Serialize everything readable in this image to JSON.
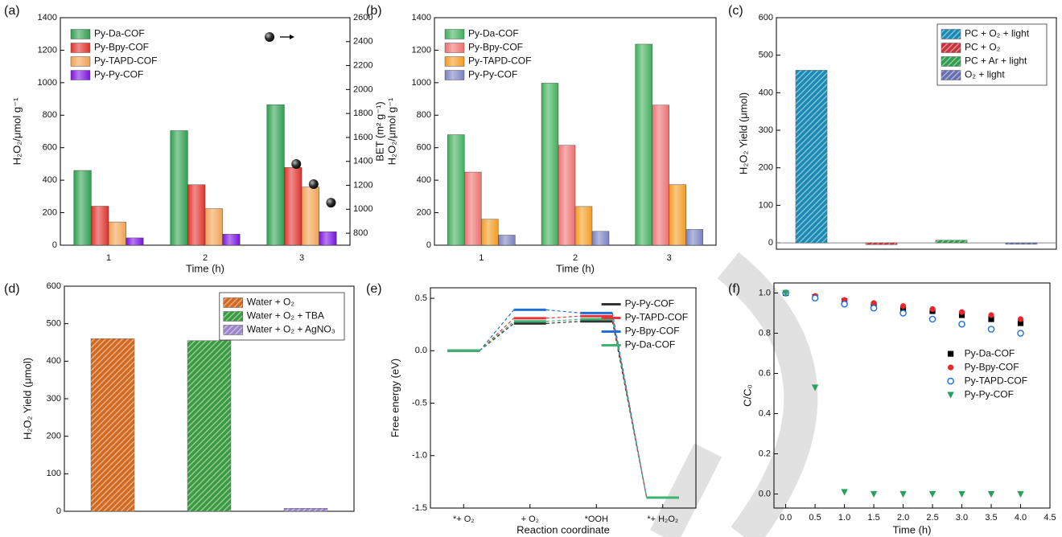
{
  "chart_data": [
    {
      "type": "bar",
      "label": "(a)",
      "x_label": "Time (h)",
      "y_label": "H₂O₂/μmol g⁻¹",
      "y2_label": "BET (m² g⁻¹)",
      "categories": [
        "1",
        "2",
        "3"
      ],
      "series": [
        {
          "name": "Py-Da-COF",
          "color": "#2e9e4f",
          "values": [
            460,
            705,
            865
          ]
        },
        {
          "name": "Py-Bpy-COF",
          "color": "#e0302a",
          "values": [
            240,
            372,
            478
          ],
          "bet": 1378
        },
        {
          "name": "Py-TAPD-COF",
          "color": "#f0a050",
          "values": [
            143,
            225,
            358
          ],
          "bet": 1210
        },
        {
          "name": "Py-Py-COF",
          "color": "#7a10e0",
          "values": [
            45,
            68,
            83
          ],
          "bet": 1055
        }
      ],
      "ylim": [
        0,
        1400
      ],
      "yticks": [
        0,
        200,
        400,
        600,
        800,
        1000,
        1200,
        1400
      ],
      "y2lim": [
        700,
        2600
      ],
      "y2ticks": [
        800,
        1000,
        1200,
        1400,
        1600,
        1800,
        2000,
        2200,
        2400,
        2600
      ],
      "legend": "upper left",
      "gradient": true
    },
    {
      "type": "bar",
      "label": "(b)",
      "x_label": "Time (h)",
      "y_label": "H₂O₂/μmol g⁻¹",
      "categories": [
        "1",
        "2",
        "3"
      ],
      "series": [
        {
          "name": "Py-Da-COF",
          "color": "#3fae5a",
          "values": [
            680,
            997,
            1237
          ]
        },
        {
          "name": "Py-Bpy-COF",
          "color": "#ee6e6e",
          "values": [
            450,
            615,
            862
          ]
        },
        {
          "name": "Py-TAPD-COF",
          "color": "#f39a1e",
          "values": [
            160,
            238,
            373
          ]
        },
        {
          "name": "Py-Py-COF",
          "color": "#7a80c0",
          "values": [
            62,
            85,
            97
          ]
        }
      ],
      "ylim": [
        0,
        1400
      ],
      "yticks": [
        0,
        200,
        400,
        600,
        800,
        1000,
        1200,
        1400
      ],
      "legend": "upper left",
      "gradient": true
    },
    {
      "type": "bar",
      "label": "(c)",
      "y_label": "H₂O₂ Yield (μmol)",
      "series": [
        {
          "name": "PC + O₂ + light",
          "color": "#1a8ab5",
          "values": [
            460
          ]
        },
        {
          "name": "PC + O₂",
          "color": "#c8323a",
          "values": [
            -5
          ]
        },
        {
          "name": "PC + Ar + light",
          "color": "#2e9e4f",
          "values": [
            7
          ]
        },
        {
          "name": "O₂ + light",
          "color": "#6670b0",
          "values": [
            -4
          ]
        }
      ],
      "ylim": [
        -17,
        600
      ],
      "yticks": [
        0,
        100,
        200,
        300,
        400,
        500,
        600
      ],
      "legend": "upper right",
      "legend_frame": true,
      "hatch": true
    },
    {
      "type": "bar",
      "label": "(d)",
      "y_label": "H₂O₂ Yield (μmol)",
      "series": [
        {
          "name": "Water + O₂",
          "color": "#d2691e",
          "values": [
            460
          ]
        },
        {
          "name": "Water + O₂ + TBA",
          "color": "#3a9a40",
          "values": [
            455
          ]
        },
        {
          "name": "Water + O₂ + AgNO₃",
          "color": "#9b86c8",
          "values": [
            8
          ]
        }
      ],
      "ylim": [
        0,
        600
      ],
      "yticks": [
        0,
        100,
        200,
        300,
        400,
        500,
        600
      ],
      "legend": "upper right",
      "legend_frame": true,
      "hatch": true
    },
    {
      "type": "line",
      "label": "(e)",
      "x_label": "Reaction coordinate",
      "y_label": "Free energy (eV)",
      "categories": [
        "*+ O₂",
        "+ O₂",
        "*OOH",
        "*+ H₂O₂"
      ],
      "series": [
        {
          "name": "Py-Py-COF",
          "color": "#333333",
          "values": [
            0,
            0.26,
            0.28,
            -1.4
          ]
        },
        {
          "name": "Py-TAPD-COF",
          "color": "#e8353a",
          "values": [
            0,
            0.31,
            0.33,
            -1.4
          ]
        },
        {
          "name": "Py-Bpy-COF",
          "color": "#1f6fd8",
          "values": [
            0,
            0.39,
            0.36,
            -1.4
          ]
        },
        {
          "name": "Py-Da-COF",
          "color": "#3cb371",
          "values": [
            0,
            0.28,
            0.3,
            -1.4
          ]
        }
      ],
      "ylim": [
        -1.5,
        0.6
      ],
      "yticks": [
        -1.5,
        {
          "value": -1,
          "label": "-1.0"
        },
        -0.5,
        {
          "value": 0,
          "label": "0.0"
        },
        0.5
      ],
      "legend": "upper right"
    },
    {
      "type": "scatter",
      "label": "(f)",
      "x_label": "Time (h)",
      "y_label": "C/C₀",
      "x": [
        0,
        0.5,
        1,
        1.5,
        2,
        2.5,
        3,
        3.5,
        4
      ],
      "series": [
        {
          "name": "Py-Da-COF",
          "color": "#000000",
          "marker": "square",
          "values": [
            1.0,
            0.98,
            0.96,
            0.94,
            0.92,
            0.91,
            0.89,
            0.87,
            0.85
          ]
        },
        {
          "name": "Py-Bpy-COF",
          "color": "#e8262b",
          "marker": "circle",
          "values": [
            1.0,
            0.985,
            0.965,
            0.95,
            0.935,
            0.92,
            0.905,
            0.89,
            0.87
          ]
        },
        {
          "name": "Py-TAPD-COF",
          "color": "#1f6fe0",
          "marker": "open-circle",
          "values": [
            1.0,
            0.975,
            0.945,
            0.925,
            0.9,
            0.87,
            0.845,
            0.82,
            0.8
          ]
        },
        {
          "name": "Py-Py-COF",
          "color": "#2aa060",
          "marker": "triangle-down",
          "values": [
            1.0,
            0.53,
            0.01,
            0,
            0,
            0,
            0,
            0,
            0
          ]
        }
      ],
      "xlim": [
        -0.2,
        4.5
      ],
      "xticks": [
        {
          "value": 0,
          "label": "0.0"
        },
        0.5,
        {
          "value": 1,
          "label": "1.0"
        },
        1.5,
        {
          "value": 2,
          "label": "2.0"
        },
        2.5,
        {
          "value": 3,
          "label": "3.0"
        },
        3.5,
        {
          "value": 4,
          "label": "4.0"
        },
        4.5
      ],
      "ylim": [
        -0.07,
        1.05
      ],
      "yticks": [
        {
          "value": 0,
          "label": "0.0"
        },
        0.2,
        0.4,
        0.6,
        0.8,
        {
          "value": 1,
          "label": "1.0"
        }
      ],
      "legend": "center right"
    }
  ]
}
